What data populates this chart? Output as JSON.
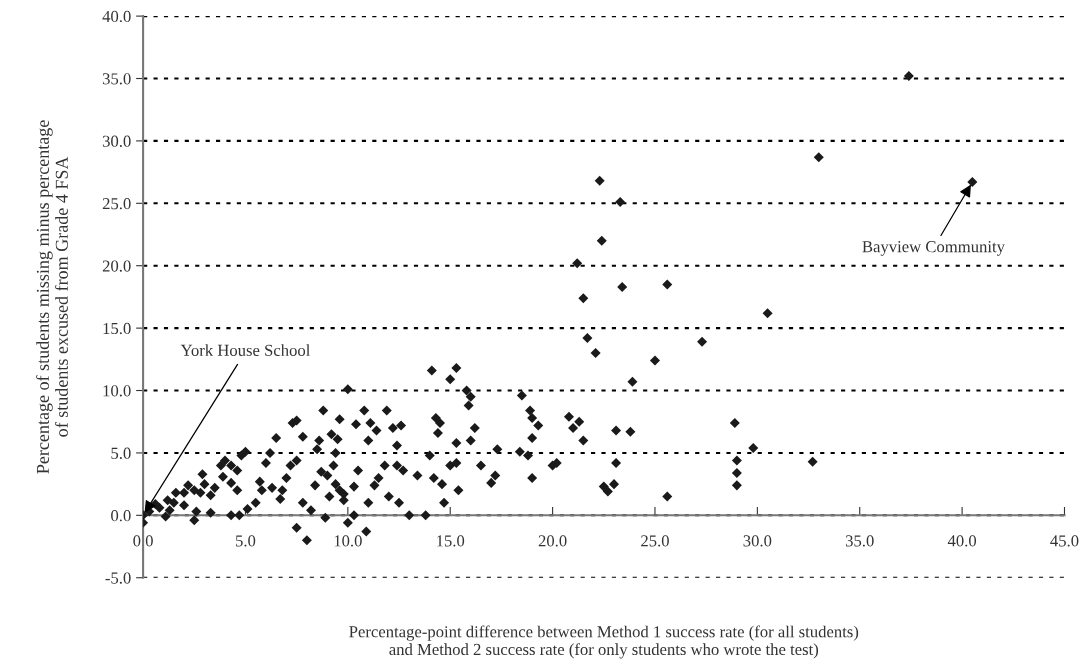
{
  "chart_data": {
    "type": "scatter",
    "xlabel": "Percentage-point difference between Method 1 success rate (for all students)\nand Method 2 success rate (for only students who wrote the test)",
    "ylabel": "Percentage of students missing minus percentage\nof students excused from Grade 4 FSA",
    "xlim": [
      0,
      45
    ],
    "xticks": [
      {
        "value": 0,
        "label": "0.0"
      },
      {
        "value": 5,
        "label": "5.0"
      },
      {
        "value": 10,
        "label": "10.0"
      },
      {
        "value": 15,
        "label": "15.0"
      },
      {
        "value": 20,
        "label": "20.0"
      },
      {
        "value": 25,
        "label": "25.0"
      },
      {
        "value": 30,
        "label": "30.0"
      },
      {
        "value": 35,
        "label": "35.0"
      },
      {
        "value": 40,
        "label": "40.0"
      },
      {
        "value": 45,
        "label": "45.0"
      }
    ],
    "ylim": [
      -5,
      40
    ],
    "yticks": [
      {
        "value": -5,
        "label": "-5.0"
      },
      {
        "value": 0,
        "label": "0.0"
      },
      {
        "value": 5,
        "label": "5.0"
      },
      {
        "value": 10,
        "label": "10.0"
      },
      {
        "value": 15,
        "label": "15.0"
      },
      {
        "value": 20,
        "label": "20.0"
      },
      {
        "value": 25,
        "label": "25.0"
      },
      {
        "value": 30,
        "label": "30.0"
      },
      {
        "value": 35,
        "label": "35.0"
      },
      {
        "value": 40,
        "label": "40.0"
      }
    ],
    "grid": "y",
    "marker": "diamond",
    "annotations": [
      {
        "text": "York House School",
        "x": 0.0,
        "y": 0.0
      },
      {
        "text": "Bayview Community",
        "x": 40.5,
        "y": 26.7
      }
    ],
    "series": [
      {
        "color": "#1a1a1a",
        "x": [
          37.4,
          33.0,
          40.5,
          22.3,
          23.3,
          22.4,
          21.2,
          21.5,
          25.6,
          23.4,
          30.5,
          21.7,
          22.1,
          27.3,
          25.0,
          23.9,
          21.3,
          21.5,
          28.9,
          29.8,
          29.0,
          29.0,
          29.0,
          32.7,
          23.1,
          23.8,
          23.1,
          22.5,
          22.7,
          23.0,
          25.6,
          18.5,
          18.9,
          19.0,
          19.3,
          19.0,
          20.8,
          21.0,
          20.0,
          20.2,
          18.8,
          18.4,
          19.0,
          17.3,
          16.2,
          16.5,
          17.0,
          17.2,
          16.0,
          15.9,
          15.3,
          15.0,
          15.8,
          14.1,
          14.3,
          14.5,
          14.4,
          14.0,
          15.3,
          16.0,
          15.0,
          15.3,
          15.4,
          14.6,
          14.2,
          14.7,
          13.8,
          13.0,
          12.5,
          12.7,
          12.4,
          12.4,
          12.2,
          12.6,
          11.4,
          11.0,
          11.9,
          11.1,
          10.8,
          11.8,
          11.5,
          11.3,
          11.0,
          10.9,
          10.3,
          10.3,
          10.5,
          10.0,
          9.6,
          9.5,
          9.2,
          9.4,
          9.3,
          9.0,
          9.4,
          9.6,
          9.8,
          10.0,
          9.8,
          8.8,
          8.6,
          8.7,
          8.4,
          8.0,
          7.8,
          7.5,
          8.2,
          8.5,
          7.8,
          7.5,
          7.3,
          7.2,
          7.0,
          6.8,
          7.5,
          6.5,
          6.2,
          6.0,
          6.3,
          5.8,
          5.5,
          5.1,
          5.0,
          4.8,
          4.6,
          4.3,
          4.0,
          4.3,
          4.6,
          4.7,
          4.3,
          3.8,
          3.5,
          3.3,
          3.3,
          3.0,
          2.8,
          2.5,
          2.2,
          2.0,
          2.0,
          2.5,
          2.6,
          1.6,
          1.5,
          1.3,
          1.1,
          1.2,
          0.8,
          0.6,
          0.3,
          0.0,
          0.0,
          5.7,
          3.9,
          2.9,
          6.7,
          9.1,
          8.9,
          10.4,
          12.0,
          13.4
        ],
        "values": [
          35.2,
          28.7,
          26.7,
          26.8,
          25.1,
          22.0,
          20.2,
          17.4,
          18.5,
          18.3,
          16.2,
          14.2,
          13.0,
          13.9,
          12.4,
          10.7,
          7.5,
          6.0,
          7.4,
          5.4,
          4.4,
          3.4,
          2.4,
          4.3,
          6.8,
          6.7,
          4.2,
          2.3,
          1.9,
          2.5,
          1.5,
          9.6,
          8.4,
          7.8,
          7.2,
          6.2,
          7.9,
          7.0,
          4.0,
          4.2,
          4.8,
          5.1,
          3.0,
          5.3,
          7.0,
          4.0,
          2.6,
          3.2,
          9.5,
          8.8,
          11.8,
          10.9,
          10.0,
          11.6,
          7.8,
          7.4,
          6.6,
          4.8,
          5.8,
          6.0,
          4.0,
          4.2,
          2.0,
          2.5,
          3.0,
          1.0,
          0.0,
          0.0,
          1.0,
          3.6,
          4.0,
          5.6,
          7.0,
          7.2,
          6.8,
          6.0,
          8.4,
          7.4,
          8.4,
          4.0,
          3.0,
          2.4,
          1.0,
          -1.3,
          0.0,
          2.3,
          3.6,
          10.1,
          7.7,
          6.1,
          6.5,
          5.0,
          4.0,
          3.2,
          2.5,
          2.0,
          1.7,
          -0.6,
          1.2,
          8.4,
          6.0,
          3.5,
          2.4,
          -2.0,
          1.0,
          -1.0,
          0.4,
          5.3,
          6.3,
          7.6,
          7.4,
          4.0,
          3.0,
          2.0,
          4.4,
          6.2,
          5.0,
          4.2,
          2.2,
          2.0,
          1.0,
          0.5,
          5.1,
          4.8,
          3.6,
          4.0,
          4.4,
          2.6,
          2.0,
          0.0,
          0.0,
          4.0,
          2.2,
          1.6,
          0.2,
          2.5,
          1.8,
          2.0,
          2.4,
          1.8,
          0.8,
          -0.4,
          0.3,
          1.8,
          1.0,
          0.4,
          -0.1,
          1.2,
          0.6,
          0.9,
          0.3,
          0.0,
          -0.6,
          2.7,
          3.1,
          3.3,
          1.3,
          1.5,
          -0.2,
          7.3,
          1.5,
          3.2
        ]
      }
    ]
  }
}
